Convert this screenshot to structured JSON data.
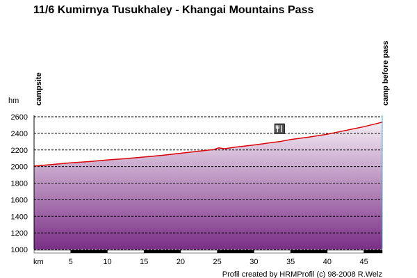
{
  "chart_data": {
    "type": "area",
    "title": "11/6 Kumirnya Tusukhaley - Khangai Mountains Pass",
    "ylabel": "hm",
    "xlabel": "km",
    "ylim": [
      1000,
      2600
    ],
    "xlim": [
      0,
      47.5
    ],
    "y_ticks": [
      1000,
      1200,
      1400,
      1600,
      1800,
      2000,
      2200,
      2400,
      2600
    ],
    "x_ticks": [
      5,
      10,
      15,
      20,
      25,
      30,
      35,
      40,
      45
    ],
    "x_tick_labels": [
      "5",
      "10",
      "15",
      "20",
      "25",
      "30",
      "35",
      "40",
      "45"
    ],
    "grid": "horizontal dashed",
    "series": [
      {
        "x": [
          0,
          2.5,
          5,
          7.5,
          10,
          12.5,
          15,
          17.5,
          20,
          22.5,
          24.5,
          25.2,
          26,
          27.5,
          30,
          32.5,
          33.5,
          35,
          37.5,
          40,
          42.5,
          45,
          47.5
        ],
        "y": [
          2005,
          2025,
          2045,
          2060,
          2080,
          2095,
          2115,
          2135,
          2160,
          2185,
          2205,
          2225,
          2215,
          2235,
          2260,
          2290,
          2300,
          2325,
          2355,
          2390,
          2435,
          2480,
          2535
        ],
        "color": "#dd0000",
        "fill_top": "#f4ecf4",
        "fill_bottom": "#7a2e86"
      }
    ],
    "waypoints": [
      {
        "km": 0,
        "label": "campsite"
      },
      {
        "km": 47.5,
        "label": "camp before pass"
      }
    ],
    "markers": [
      {
        "km": 33.5,
        "icon": "fork-knife-icon"
      }
    ],
    "credit": "Profil created by HRMProfil (c) 98-2008 R.Welz"
  }
}
